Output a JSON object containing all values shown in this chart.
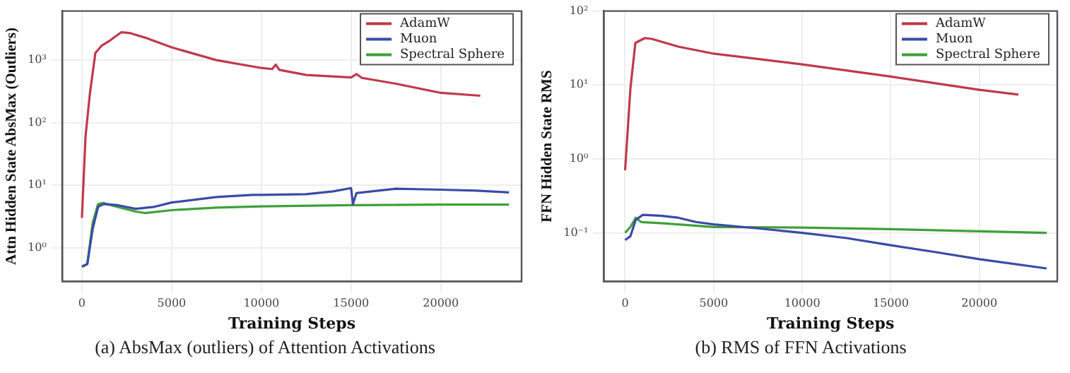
{
  "chart_data": [
    {
      "type": "line",
      "xlabel": "Training Steps",
      "ylabel": "Attn Hidden State AbsMax (Outliers)",
      "annotations": [
        "(a) AbsMax (outliers) of Attention Activations"
      ],
      "log": "y",
      "grid": true,
      "legend": "top right",
      "line_style": "solid",
      "marker": "none",
      "xlim": [
        -1100,
        24500
      ],
      "xticks": [
        0,
        5000,
        10000,
        15000,
        20000
      ],
      "ylim": [
        0.29,
        6100
      ],
      "yticks": [
        {
          "value": 1,
          "label": "10⁰"
        },
        {
          "value": 10,
          "label": "10¹"
        },
        {
          "value": 100,
          "label": "10²"
        },
        {
          "value": 1000,
          "label": "10³"
        }
      ],
      "series": [
        {
          "name": "AdamW",
          "color": "#c0394b",
          "x": [
            0,
            200,
            450,
            750,
            1100,
            1500,
            2200,
            2700,
            3500,
            5000,
            7500,
            10000,
            10600,
            10800,
            11000,
            12500,
            15000,
            15300,
            15600,
            17500,
            20000,
            22200
          ],
          "values": [
            3,
            60,
            300,
            1300,
            1700,
            2000,
            2800,
            2700,
            2300,
            1600,
            1000,
            750,
            720,
            850,
            700,
            580,
            530,
            600,
            520,
            420,
            300,
            270
          ]
        },
        {
          "name": "Muon",
          "color": "#3b4aa8",
          "x": [
            0,
            300,
            600,
            900,
            1200,
            2000,
            3000,
            4000,
            5000,
            7500,
            9500,
            10000,
            12500,
            14000,
            15000,
            15100,
            15300,
            17500,
            20000,
            22000,
            23800
          ],
          "values": [
            0.5,
            0.55,
            2,
            4.5,
            5,
            4.8,
            4.2,
            4.5,
            5.3,
            6.5,
            7,
            7,
            7.2,
            8,
            9,
            5,
            7.5,
            8.8,
            8.5,
            8.2,
            7.7
          ]
        },
        {
          "name": "Spectral Sphere",
          "color": "#3fa03a",
          "x": [
            0,
            300,
            600,
            900,
            1200,
            2000,
            3000,
            3500,
            5000,
            7500,
            10000,
            15000,
            20000,
            23800
          ],
          "values": [
            0.5,
            0.55,
            2.5,
            5,
            5.2,
            4.5,
            3.8,
            3.6,
            4,
            4.4,
            4.6,
            4.8,
            4.9,
            4.9
          ]
        }
      ]
    },
    {
      "type": "line",
      "xlabel": "Training Steps",
      "ylabel": "FFN Hidden State RMS",
      "annotations": [
        "(b) RMS of FFN Activations"
      ],
      "log": "y",
      "grid": true,
      "legend": "top right",
      "line_style": "solid",
      "marker": "none",
      "xlim": [
        -1200,
        24400
      ],
      "xticks": [
        0,
        5000,
        10000,
        15000,
        20000
      ],
      "ylim": [
        0.022,
        100
      ],
      "yticks": [
        {
          "value": 0.1,
          "label": "10⁻¹"
        },
        {
          "value": 1,
          "label": "10⁰"
        },
        {
          "value": 10,
          "label": "10¹"
        },
        {
          "value": 100,
          "label": "10²"
        }
      ],
      "series": [
        {
          "name": "AdamW",
          "color": "#c0394b",
          "x": [
            0,
            300,
            580,
            1100,
            1500,
            3000,
            5000,
            10000,
            15000,
            20000,
            22200
          ],
          "values": [
            0.7,
            9,
            37,
            43,
            42,
            33,
            26.5,
            19,
            13,
            8.6,
            7.4
          ]
        },
        {
          "name": "Muon",
          "color": "#3b4aa8",
          "x": [
            0,
            300,
            600,
            1000,
            2000,
            3000,
            4000,
            5000,
            7500,
            10000,
            12500,
            15000,
            17500,
            20000,
            23800
          ],
          "values": [
            0.08,
            0.09,
            0.15,
            0.175,
            0.17,
            0.16,
            0.14,
            0.13,
            0.115,
            0.1,
            0.085,
            0.068,
            0.055,
            0.044,
            0.033
          ]
        },
        {
          "name": "Spectral Sphere",
          "color": "#3fa03a",
          "x": [
            0,
            300,
            600,
            900,
            2000,
            3000,
            5000,
            10000,
            15000,
            20000,
            23800
          ],
          "values": [
            0.1,
            0.12,
            0.16,
            0.14,
            0.135,
            0.13,
            0.12,
            0.118,
            0.112,
            0.105,
            0.1
          ]
        }
      ]
    }
  ]
}
